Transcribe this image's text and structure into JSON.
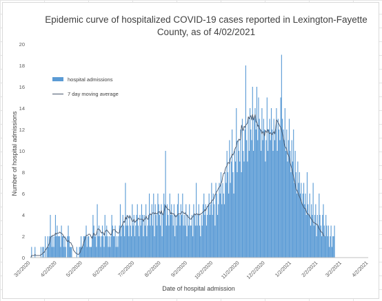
{
  "chart_data": {
    "type": "bar",
    "title": "Epidemic curve of hospitalized COVID-19 cases reported in Lexington-Fayette County, as of 4/02/2021",
    "xlabel": "Date of hospital admission",
    "ylabel": "Number of hospital admissions",
    "ylim": [
      0,
      20
    ],
    "yticks": [
      "0",
      "2",
      "4",
      "6",
      "8",
      "10",
      "12",
      "14",
      "16",
      "18",
      "20"
    ],
    "xlim": [
      "2020-03-02",
      "2021-04-02"
    ],
    "xticks": [
      "3/2/2020",
      "4/2/2020",
      "5/2/2020",
      "6/2/2020",
      "7/2/2020",
      "8/2/2020",
      "9/2/2020",
      "10/2/2020",
      "11/2/2020",
      "12/2/2020",
      "1/2/2021",
      "2/2/2021",
      "3/2/2021",
      "4/2/2021"
    ],
    "gridlines": false,
    "legend_position": "upper-left",
    "colors": {
      "bars": "#5b9bd5",
      "line": "#44546a"
    },
    "series": [
      {
        "name": "hospital admissions",
        "type": "bar",
        "x_start": "2020-03-02",
        "interval": "daily",
        "values": [
          0,
          1,
          0,
          0,
          0,
          1,
          0,
          0,
          0,
          0,
          0,
          0,
          1,
          0,
          1,
          1,
          0,
          2,
          0,
          1,
          2,
          1,
          2,
          4,
          2,
          1,
          2,
          1,
          2,
          4,
          2,
          3,
          2,
          2,
          2,
          1,
          3,
          2,
          2,
          1,
          2,
          1,
          0,
          2,
          3,
          2,
          1,
          1,
          1,
          0,
          0,
          0,
          0,
          0,
          1,
          0,
          0,
          1,
          1,
          2,
          1,
          1,
          2,
          2,
          2,
          3,
          1,
          2,
          2,
          1,
          1,
          1,
          2,
          4,
          3,
          2,
          2,
          1,
          5,
          2,
          3,
          2,
          1,
          2,
          3,
          2,
          1,
          4,
          2,
          3,
          2,
          1,
          2,
          1,
          2,
          4,
          3,
          2,
          2,
          3,
          1,
          2,
          1,
          2,
          3,
          5,
          2,
          3,
          4,
          3,
          2,
          7,
          3,
          4,
          3,
          2,
          4,
          3,
          2,
          5,
          3,
          4,
          2,
          3,
          4,
          5,
          3,
          2,
          4,
          3,
          5,
          4,
          2,
          4,
          3,
          5,
          2,
          3,
          4,
          6,
          3,
          4,
          5,
          3,
          6,
          2,
          5,
          4,
          3,
          6,
          5,
          4,
          3,
          5,
          2,
          4,
          6,
          5,
          10,
          3,
          5,
          4,
          3,
          6,
          4,
          5,
          4,
          3,
          5,
          2,
          4,
          3,
          5,
          6,
          4,
          3,
          5,
          4,
          6,
          3,
          4,
          3,
          5,
          2,
          4,
          3,
          5,
          3,
          3,
          4,
          2,
          5,
          4,
          3,
          7,
          3,
          4,
          5,
          3,
          2,
          4,
          3,
          5,
          6,
          4,
          5,
          3,
          4,
          5,
          6,
          4,
          5,
          7,
          4,
          6,
          5,
          3,
          7,
          6,
          4,
          5,
          7,
          6,
          8,
          5,
          7,
          6,
          5,
          8,
          7,
          10,
          8,
          6,
          11,
          7,
          9,
          12,
          8,
          6,
          10,
          9,
          14,
          8,
          11,
          10,
          9,
          12,
          8,
          13,
          10,
          9,
          12,
          18,
          11,
          9,
          13,
          10,
          14,
          12,
          11,
          16,
          10,
          13,
          14,
          12,
          16,
          11,
          15,
          13,
          12,
          10,
          14,
          11,
          13,
          12,
          9,
          11,
          15,
          10,
          12,
          13,
          11,
          14,
          12,
          10,
          13,
          11,
          12,
          14,
          10,
          13,
          12,
          11,
          15,
          19,
          13,
          12,
          11,
          14,
          10,
          12,
          9,
          11,
          13,
          10,
          8,
          11,
          9,
          12,
          7,
          10,
          8,
          6,
          9,
          7,
          8,
          6,
          7,
          5,
          6,
          7,
          5,
          6,
          4,
          8,
          5,
          4,
          6,
          3,
          5,
          4,
          7,
          3,
          4,
          5,
          2,
          4,
          3,
          6,
          4,
          3,
          2,
          4,
          5,
          3,
          2,
          4,
          3,
          2,
          3,
          1,
          2,
          3,
          1,
          2,
          2,
          3
        ]
      },
      {
        "name": "7 day moving average",
        "type": "line",
        "x_start": "2020-03-02",
        "interval": "daily",
        "values": [
          0,
          0.2,
          0.2,
          0.2,
          0.2,
          0.3,
          0.2,
          0.2,
          0.2,
          0.2,
          0.2,
          0.2,
          0.3,
          0.3,
          0.4,
          0.5,
          0.5,
          0.7,
          0.8,
          0.9,
          1,
          1.2,
          1.4,
          1.8,
          2,
          2,
          2.1,
          2.1,
          2.1,
          2.3,
          2.2,
          2.3,
          2.3,
          2.3,
          2.4,
          2.3,
          2.3,
          2.2,
          2.1,
          1.9,
          1.9,
          1.8,
          1.6,
          1.5,
          1.6,
          1.5,
          1.4,
          1.4,
          1.2,
          1.1,
          0.7,
          0.6,
          0.5,
          0.4,
          0.4,
          0.3,
          0.3,
          0.4,
          0.5,
          0.8,
          0.9,
          1.1,
          1.4,
          1.6,
          1.8,
          2.1,
          2.1,
          2.1,
          2.2,
          2.2,
          2.1,
          1.9,
          1.8,
          2.1,
          2.3,
          2.1,
          2.1,
          2.2,
          2.6,
          2.7,
          2.6,
          2.6,
          2.4,
          2.3,
          2.4,
          2.3,
          2.1,
          2.4,
          2.5,
          2.6,
          2.5,
          2.4,
          2.3,
          2.2,
          2.1,
          2.3,
          2.6,
          2.6,
          2.6,
          2.6,
          2.4,
          2.4,
          2.3,
          2.3,
          2.4,
          2.8,
          2.9,
          3,
          3.2,
          3.4,
          3.3,
          3.8,
          3.6,
          3.9,
          3.9,
          3.7,
          3.9,
          3.8,
          3.6,
          3.4,
          3.4,
          3.6,
          3.3,
          3.4,
          3.5,
          3.5,
          3.7,
          3.6,
          3.6,
          3.6,
          3.6,
          3.6,
          3.4,
          3.6,
          3.6,
          3.9,
          3.7,
          3.6,
          3.6,
          4,
          4.1,
          4,
          4.1,
          4.2,
          4.2,
          4.1,
          4.2,
          4.1,
          4.1,
          4.2,
          4.3,
          4.3,
          4.1,
          4.4,
          4.1,
          4,
          4.3,
          4.6,
          4.9,
          4.7,
          4.6,
          4.5,
          4.5,
          4.4,
          4.1,
          4.2,
          4.1,
          4.1,
          4.1,
          3.9,
          3.8,
          3.9,
          4,
          4.1,
          4.1,
          4.1,
          4.1,
          4.3,
          4.3,
          4.2,
          4.1,
          4.2,
          4,
          4,
          3.8,
          3.8,
          3.7,
          3.6,
          3.6,
          3.8,
          3.8,
          4,
          4.1,
          4,
          4.1,
          4.1,
          4,
          4.1,
          4,
          4.1,
          4.1,
          4.2,
          4.3,
          4.3,
          4.5,
          4.4,
          4.6,
          4.8,
          4.8,
          5,
          5.1,
          5.1,
          5.3,
          5.4,
          5.4,
          5.6,
          5.9,
          6,
          6.2,
          6.3,
          6.5,
          6.6,
          6.7,
          7,
          7.1,
          7.6,
          7.9,
          7.9,
          8.3,
          8.5,
          8.6,
          8.9,
          8.9,
          8.8,
          9.3,
          9.4,
          9.7,
          9.6,
          9.8,
          10.1,
          10.3,
          10.4,
          10.9,
          10.9,
          11.1,
          11,
          11.1,
          12.4,
          12.1,
          11.9,
          12.3,
          12.2,
          12.4,
          12.5,
          12.6,
          13.2,
          13,
          13.2,
          13.3,
          12.9,
          13.4,
          12.9,
          13.1,
          13.4,
          12.7,
          12.7,
          12.3,
          12.4,
          12.1,
          12,
          11.9,
          11.6,
          11.8,
          11.7,
          11.4,
          11.9,
          11.8,
          11.7,
          12,
          11.7,
          11.6,
          11.7,
          11.6,
          11.5,
          11.7,
          11.8,
          11.6,
          12.1,
          12.9,
          12.8,
          12.6,
          12.5,
          12.3,
          12.2,
          11.9,
          11.6,
          11.3,
          10.7,
          10.4,
          10.3,
          10.1,
          9.7,
          9.6,
          9.4,
          8.9,
          8.6,
          8.3,
          7.9,
          7.6,
          7.2,
          6.9,
          6.4,
          6.3,
          6.1,
          5.9,
          5.7,
          5.5,
          5.3,
          5,
          4.9,
          4.7,
          4.6,
          4.6,
          4.3,
          4.1,
          4.1,
          4,
          3.9,
          3.7,
          3.6,
          3.5,
          3.3,
          3.3,
          3.2,
          3.2,
          3.1,
          3.1,
          2.9,
          2.7,
          2.6,
          2.4,
          2.4,
          2.3,
          2.1,
          2
        ]
      }
    ]
  }
}
